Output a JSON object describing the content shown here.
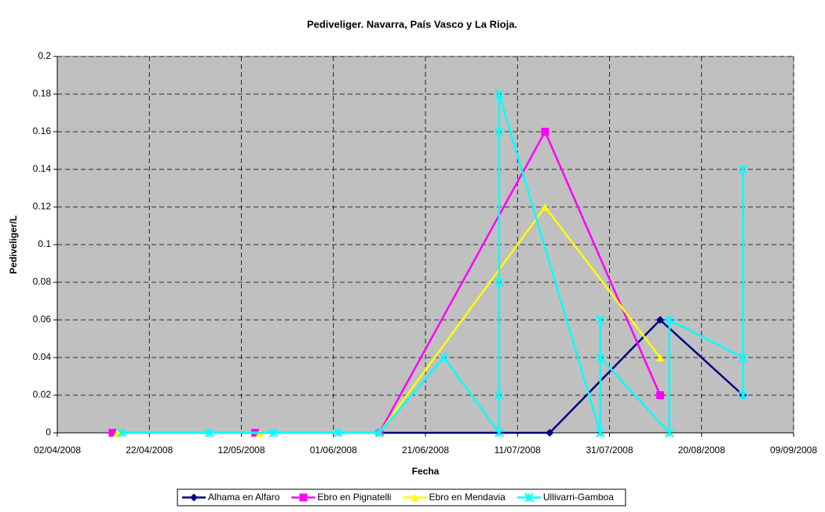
{
  "chart_data": {
    "type": "line",
    "title": "Pediveliger. Navarra, País Vasco y La Rioja.",
    "xlabel": "Fecha",
    "ylabel": "Pediveliger/L",
    "xlim": [
      "2008-04-02",
      "2008-09-09"
    ],
    "xticks": [
      {
        "value": "2008-04-02",
        "label": "02/04/2008"
      },
      {
        "value": "2008-04-22",
        "label": "22/04/2008"
      },
      {
        "value": "2008-05-12",
        "label": "12/05/2008"
      },
      {
        "value": "2008-06-01",
        "label": "01/06/2008"
      },
      {
        "value": "2008-06-21",
        "label": "21/06/2008"
      },
      {
        "value": "2008-07-11",
        "label": "11/07/2008"
      },
      {
        "value": "2008-07-31",
        "label": "31/07/2008"
      },
      {
        "value": "2008-08-20",
        "label": "20/08/2008"
      },
      {
        "value": "2008-09-09",
        "label": "09/09/2008"
      }
    ],
    "ylim": [
      0,
      0.2
    ],
    "yticks": [
      0,
      0.02,
      0.04,
      0.06,
      0.08,
      0.1,
      0.12,
      0.14,
      0.16,
      0.18,
      0.2
    ],
    "grid": true,
    "legend": "bottom",
    "series": [
      {
        "name": "Alhama en Alfaro",
        "color": "#000080",
        "marker": "diamond",
        "x": [
          "2008-04-14",
          "2008-05-15",
          "2008-06-11",
          "2008-07-18",
          "2008-08-11",
          "2008-08-29"
        ],
        "values": [
          0,
          0,
          0,
          0,
          0.06,
          0.02
        ]
      },
      {
        "name": "Ebro en Pignatelli",
        "color": "#ff00ff",
        "marker": "square",
        "x": [
          "2008-04-14",
          "2008-05-15",
          "2008-06-11",
          "2008-07-17",
          "2008-08-11"
        ],
        "values": [
          0,
          0,
          0,
          0.16,
          0.02
        ]
      },
      {
        "name": "Ebro en Mendavia",
        "color": "#ffff00",
        "marker": "triangle",
        "x": [
          "2008-04-15",
          "2008-05-16",
          "2008-06-11",
          "2008-07-17",
          "2008-08-11"
        ],
        "values": [
          0,
          0,
          0,
          0.12,
          0.04
        ]
      },
      {
        "name": "Ullivarri-Gamboa",
        "color": "#00ffff",
        "marker": "x",
        "x": [
          "2008-04-16",
          "2008-05-05",
          "2008-05-19",
          "2008-06-02",
          "2008-06-11",
          "2008-06-25",
          "2008-07-07",
          "2008-07-07",
          "2008-07-07",
          "2008-07-07",
          "2008-07-07",
          "2008-07-29",
          "2008-07-29",
          "2008-07-29",
          "2008-08-13",
          "2008-08-13",
          "2008-08-29",
          "2008-08-29",
          "2008-08-29"
        ],
        "values": [
          0,
          0,
          0,
          0,
          0,
          0.04,
          0,
          0.02,
          0.08,
          0.16,
          0.18,
          0,
          0.06,
          0.04,
          0,
          0.06,
          0.04,
          0.14,
          0.02
        ]
      }
    ]
  }
}
